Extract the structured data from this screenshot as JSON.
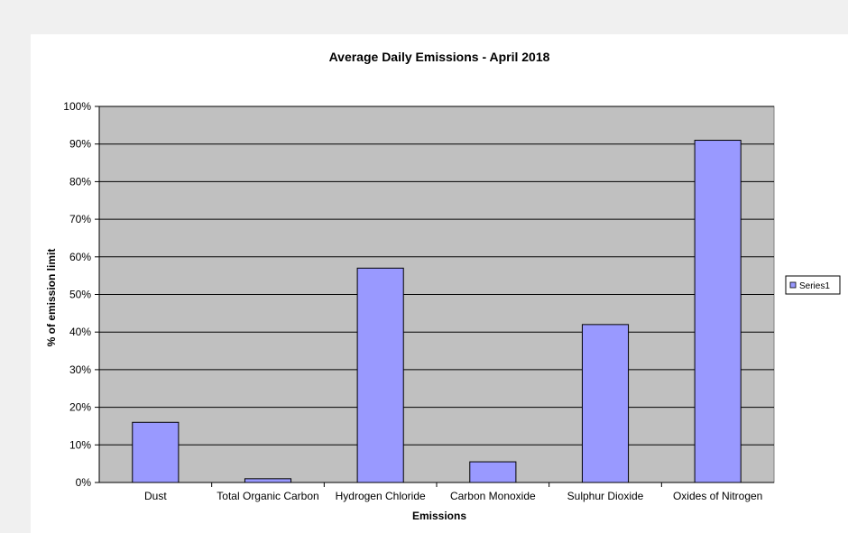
{
  "chart_data": {
    "type": "bar",
    "title": "Average Daily Emissions - April 2018",
    "xlabel": "Emissions",
    "ylabel": "% of emission limit",
    "categories": [
      "Dust",
      "Total Organic Carbon",
      "Hydrogen Chloride",
      "Carbon Monoxide",
      "Sulphur Dioxide",
      "Oxides of Nitrogen"
    ],
    "series": [
      {
        "name": "Series1",
        "values": [
          16,
          1,
          57,
          5.5,
          42,
          91
        ]
      }
    ],
    "ylim": [
      0,
      100
    ],
    "yticks": [
      "0%",
      "10%",
      "20%",
      "30%",
      "40%",
      "50%",
      "60%",
      "70%",
      "80%",
      "90%",
      "100%"
    ],
    "grid": true,
    "legend_position": "right",
    "colors": {
      "bar": "#9999ff",
      "plot_background": "#c0c0c0",
      "gridline": "#000000"
    }
  }
}
